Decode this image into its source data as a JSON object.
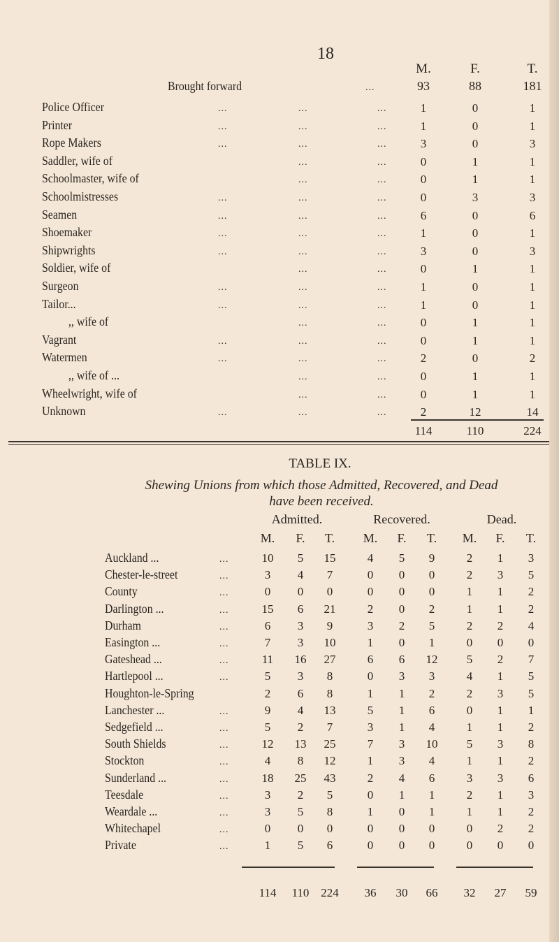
{
  "page_number": "18",
  "continued_table": {
    "headers": [
      "M.",
      "F.",
      "T."
    ],
    "brought_forward": {
      "label": "Brought forward",
      "values": [
        "93",
        "88",
        "181"
      ]
    },
    "rows": [
      {
        "label": "Police Officer",
        "values": [
          "1",
          "0",
          "1"
        ]
      },
      {
        "label": "Printer",
        "values": [
          "1",
          "0",
          "1"
        ]
      },
      {
        "label": "Rope Makers",
        "values": [
          "3",
          "0",
          "3"
        ]
      },
      {
        "label": "Saddler, wife of",
        "values": [
          "0",
          "1",
          "1"
        ]
      },
      {
        "label": "Schoolmaster, wife of",
        "values": [
          "0",
          "1",
          "1"
        ]
      },
      {
        "label": "Schoolmistresses",
        "values": [
          "0",
          "3",
          "3"
        ]
      },
      {
        "label": "Seamen",
        "values": [
          "6",
          "0",
          "6"
        ]
      },
      {
        "label": "Shoemaker",
        "values": [
          "1",
          "0",
          "1"
        ]
      },
      {
        "label": "Shipwrights",
        "values": [
          "3",
          "0",
          "3"
        ]
      },
      {
        "label": "Soldier, wife of",
        "values": [
          "0",
          "1",
          "1"
        ]
      },
      {
        "label": "Surgeon",
        "values": [
          "1",
          "0",
          "1"
        ]
      },
      {
        "label": "Tailor...",
        "values": [
          "1",
          "0",
          "1"
        ]
      },
      {
        "label": ",,  wife of",
        "values": [
          "0",
          "1",
          "1"
        ]
      },
      {
        "label": "Vagrant",
        "values": [
          "0",
          "1",
          "1"
        ]
      },
      {
        "label": "Watermen",
        "values": [
          "2",
          "0",
          "2"
        ]
      },
      {
        "label": ",,  wife of ...",
        "values": [
          "0",
          "1",
          "1"
        ]
      },
      {
        "label": "Wheelwright, wife of",
        "values": [
          "0",
          "1",
          "1"
        ]
      },
      {
        "label": "Unknown",
        "values": [
          "2",
          "12",
          "14"
        ]
      }
    ],
    "totals": [
      "114",
      "110",
      "224"
    ]
  },
  "table_ix": {
    "title": "TABLE IX.",
    "subtitle_line1": "Shewing Unions from which those Admitted, Recovered, and Dead",
    "subtitle_line2": "have been received.",
    "groups": [
      "Admitted.",
      "Recovered.",
      "Dead."
    ],
    "sub_headers": [
      "M.",
      "F.",
      "T.",
      "M.",
      "F.",
      "T.",
      "M.",
      "F.",
      "T."
    ],
    "rows": [
      {
        "label": "Auckland ...",
        "values": [
          "10",
          "5",
          "15",
          "4",
          "5",
          "9",
          "2",
          "1",
          "3"
        ]
      },
      {
        "label": "Chester-le-street",
        "values": [
          "3",
          "4",
          "7",
          "0",
          "0",
          "0",
          "2",
          "3",
          "5"
        ]
      },
      {
        "label": "County",
        "values": [
          "0",
          "0",
          "0",
          "0",
          "0",
          "0",
          "1",
          "1",
          "2"
        ]
      },
      {
        "label": "Darlington ...",
        "values": [
          "15",
          "6",
          "21",
          "2",
          "0",
          "2",
          "1",
          "1",
          "2"
        ]
      },
      {
        "label": "Durham",
        "values": [
          "6",
          "3",
          "9",
          "3",
          "2",
          "5",
          "2",
          "2",
          "4"
        ]
      },
      {
        "label": "Easington ...",
        "values": [
          "7",
          "3",
          "10",
          "1",
          "0",
          "1",
          "0",
          "0",
          "0"
        ]
      },
      {
        "label": "Gateshead ...",
        "values": [
          "11",
          "16",
          "27",
          "6",
          "6",
          "12",
          "5",
          "2",
          "7"
        ]
      },
      {
        "label": "Hartlepool ...",
        "values": [
          "5",
          "3",
          "8",
          "0",
          "3",
          "3",
          "4",
          "1",
          "5"
        ]
      },
      {
        "label": "Houghton-le-Spring",
        "values": [
          "2",
          "6",
          "8",
          "1",
          "1",
          "2",
          "2",
          "3",
          "5"
        ]
      },
      {
        "label": "Lanchester ...",
        "values": [
          "9",
          "4",
          "13",
          "5",
          "1",
          "6",
          "0",
          "1",
          "1"
        ]
      },
      {
        "label": "Sedgefield ...",
        "values": [
          "5",
          "2",
          "7",
          "3",
          "1",
          "4",
          "1",
          "1",
          "2"
        ]
      },
      {
        "label": "South Shields",
        "values": [
          "12",
          "13",
          "25",
          "7",
          "3",
          "10",
          "5",
          "3",
          "8"
        ]
      },
      {
        "label": "Stockton",
        "values": [
          "4",
          "8",
          "12",
          "1",
          "3",
          "4",
          "1",
          "1",
          "2"
        ]
      },
      {
        "label": "Sunderland ...",
        "values": [
          "18",
          "25",
          "43",
          "2",
          "4",
          "6",
          "3",
          "3",
          "6"
        ]
      },
      {
        "label": "Teesdale",
        "values": [
          "3",
          "2",
          "5",
          "0",
          "1",
          "1",
          "2",
          "1",
          "3"
        ]
      },
      {
        "label": "Weardale ...",
        "values": [
          "3",
          "5",
          "8",
          "1",
          "0",
          "1",
          "1",
          "1",
          "2"
        ]
      },
      {
        "label": "Whitechapel",
        "values": [
          "0",
          "0",
          "0",
          "0",
          "0",
          "0",
          "0",
          "2",
          "2"
        ]
      },
      {
        "label": "Private",
        "values": [
          "1",
          "5",
          "6",
          "0",
          "0",
          "0",
          "0",
          "0",
          "0"
        ]
      }
    ],
    "totals": [
      "114",
      "110",
      "224",
      "36",
      "30",
      "66",
      "32",
      "27",
      "59"
    ]
  },
  "dots": "...",
  "colors": {
    "paper": "#f4e7d7",
    "ink": "#2a2520"
  }
}
